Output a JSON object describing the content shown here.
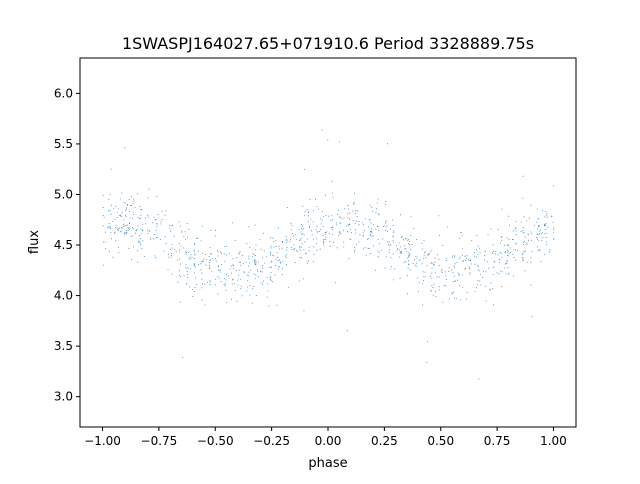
{
  "chart_data": {
    "type": "scatter",
    "title": "1SWASPJ164027.65+071910.6 Period 3328889.75s",
    "xlabel": "phase",
    "ylabel": "flux",
    "xlim": [
      -1.1,
      1.1
    ],
    "ylim": [
      2.7,
      6.35
    ],
    "x_ticks": [
      -1.0,
      -0.75,
      -0.5,
      -0.25,
      0.0,
      0.25,
      0.5,
      0.75,
      1.0
    ],
    "x_tick_labels": [
      "−1.00",
      "−0.75",
      "−0.50",
      "−0.25",
      "0.00",
      "0.25",
      "0.50",
      "0.75",
      "1.00"
    ],
    "y_ticks": [
      3.0,
      3.5,
      4.0,
      4.5,
      5.0,
      5.5,
      6.0
    ],
    "y_tick_labels": [
      "3.0",
      "3.5",
      "4.0",
      "4.5",
      "5.0",
      "5.5",
      "6.0"
    ],
    "grid": false,
    "marker_color": "#1f77b4",
    "phase_range": [
      -1.0,
      1.0
    ],
    "series": [
      {
        "x": [
          -1.0,
          -0.9,
          -0.8,
          -0.7,
          -0.6,
          -0.5,
          -0.4,
          -0.3,
          -0.2,
          -0.1,
          0.0,
          0.1,
          0.2,
          0.3,
          0.4,
          0.5,
          0.6,
          0.7,
          0.8,
          0.9,
          1.0
        ],
        "values": [
          4.7,
          4.72,
          4.68,
          4.52,
          4.32,
          4.25,
          4.25,
          4.3,
          4.45,
          4.6,
          4.7,
          4.72,
          4.68,
          4.52,
          4.32,
          4.25,
          4.25,
          4.3,
          4.45,
          4.6,
          4.7
        ]
      }
    ]
  }
}
